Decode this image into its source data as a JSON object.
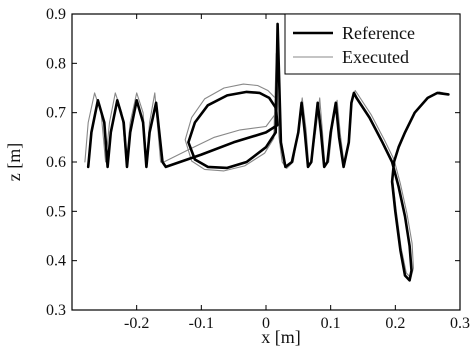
{
  "chart_data": {
    "type": "line",
    "title": "",
    "xlabel": "x [m]",
    "ylabel": "z [m]",
    "xlim": [
      -0.3,
      0.3
    ],
    "ylim": [
      0.3,
      0.9
    ],
    "xticks": [
      -0.2,
      -0.1,
      0,
      0.1,
      0.2,
      0.3
    ],
    "xtick_labels": [
      "-0.2",
      "-0.1",
      "0",
      "0.1",
      "0.2",
      "0.3"
    ],
    "yticks": [
      0.3,
      0.4,
      0.5,
      0.6,
      0.7,
      0.8,
      0.9
    ],
    "ytick_labels": [
      "0.3",
      "0.4",
      "0.5",
      "0.6",
      "0.7",
      "0.8",
      "0.9"
    ],
    "grid": false,
    "legend_position": "top-right",
    "series": [
      {
        "name": "Reference",
        "color": "#000000",
        "style": "thick",
        "x": [
          -0.275,
          -0.27,
          -0.26,
          -0.25,
          -0.245,
          -0.24,
          -0.23,
          -0.22,
          -0.215,
          -0.21,
          -0.2,
          -0.19,
          -0.185,
          -0.18,
          -0.17,
          -0.16,
          -0.155,
          -0.1,
          -0.05,
          0.0,
          0.018,
          0.015,
          0.005,
          -0.01,
          -0.03,
          -0.06,
          -0.09,
          -0.11,
          -0.12,
          -0.11,
          -0.09,
          -0.06,
          -0.03,
          0.0,
          0.015,
          0.018,
          0.023,
          0.03,
          0.04,
          0.05,
          0.055,
          0.06,
          0.065,
          0.07,
          0.075,
          0.08,
          0.085,
          0.09,
          0.095,
          0.1,
          0.108,
          0.113,
          0.12,
          0.128,
          0.132,
          0.136,
          0.14,
          0.16,
          0.18,
          0.195,
          0.205,
          0.215,
          0.222,
          0.225,
          0.222,
          0.215,
          0.208,
          0.2,
          0.195,
          0.198,
          0.205,
          0.215,
          0.23,
          0.25,
          0.265,
          0.282
        ],
        "y": [
          0.59,
          0.66,
          0.725,
          0.68,
          0.59,
          0.66,
          0.725,
          0.68,
          0.59,
          0.66,
          0.725,
          0.68,
          0.59,
          0.66,
          0.72,
          0.6,
          0.59,
          0.615,
          0.64,
          0.66,
          0.675,
          0.71,
          0.73,
          0.74,
          0.742,
          0.735,
          0.715,
          0.68,
          0.64,
          0.605,
          0.59,
          0.588,
          0.6,
          0.63,
          0.66,
          0.88,
          0.64,
          0.59,
          0.6,
          0.66,
          0.72,
          0.66,
          0.59,
          0.6,
          0.66,
          0.72,
          0.66,
          0.59,
          0.6,
          0.66,
          0.72,
          0.65,
          0.59,
          0.64,
          0.72,
          0.74,
          0.73,
          0.69,
          0.64,
          0.6,
          0.55,
          0.49,
          0.43,
          0.38,
          0.36,
          0.37,
          0.42,
          0.5,
          0.56,
          0.6,
          0.63,
          0.66,
          0.7,
          0.73,
          0.74,
          0.737
        ]
      },
      {
        "name": "Executed",
        "color": "#888888",
        "style": "thin",
        "x": [
          -0.28,
          -0.275,
          -0.265,
          -0.255,
          -0.248,
          -0.242,
          -0.233,
          -0.223,
          -0.216,
          -0.21,
          -0.2,
          -0.19,
          -0.185,
          -0.18,
          -0.172,
          -0.163,
          -0.158,
          -0.12,
          -0.08,
          -0.04,
          0.0,
          0.016,
          0.014,
          0.003,
          -0.013,
          -0.035,
          -0.065,
          -0.095,
          -0.115,
          -0.125,
          -0.115,
          -0.095,
          -0.065,
          -0.033,
          -0.002,
          0.012,
          0.016,
          0.02,
          0.025,
          0.032,
          0.042,
          0.05,
          0.056,
          0.062,
          0.066,
          0.07,
          0.077,
          0.083,
          0.087,
          0.091,
          0.097,
          0.102,
          0.11,
          0.115,
          0.121,
          0.129,
          0.133,
          0.138,
          0.143,
          0.163,
          0.183,
          0.198,
          0.208,
          0.218,
          0.226,
          0.228,
          0.224,
          0.217,
          0.209,
          0.201,
          0.196,
          0.198,
          0.206,
          0.216,
          0.232,
          0.252,
          0.268,
          0.28
        ],
        "y": [
          0.6,
          0.68,
          0.74,
          0.7,
          0.6,
          0.68,
          0.74,
          0.7,
          0.6,
          0.68,
          0.74,
          0.7,
          0.6,
          0.68,
          0.74,
          0.6,
          0.6,
          0.625,
          0.65,
          0.665,
          0.672,
          0.7,
          0.73,
          0.745,
          0.755,
          0.758,
          0.75,
          0.728,
          0.69,
          0.645,
          0.602,
          0.585,
          0.582,
          0.592,
          0.618,
          0.648,
          0.82,
          0.652,
          0.6,
          0.587,
          0.6,
          0.665,
          0.73,
          0.665,
          0.595,
          0.6,
          0.665,
          0.73,
          0.665,
          0.595,
          0.6,
          0.665,
          0.725,
          0.655,
          0.595,
          0.645,
          0.725,
          0.745,
          0.735,
          0.695,
          0.645,
          0.605,
          0.555,
          0.495,
          0.435,
          0.385,
          0.365,
          0.375,
          0.425,
          0.505,
          0.565,
          0.605,
          0.635,
          0.665,
          0.705,
          0.732,
          0.742,
          0.738
        ]
      }
    ]
  }
}
